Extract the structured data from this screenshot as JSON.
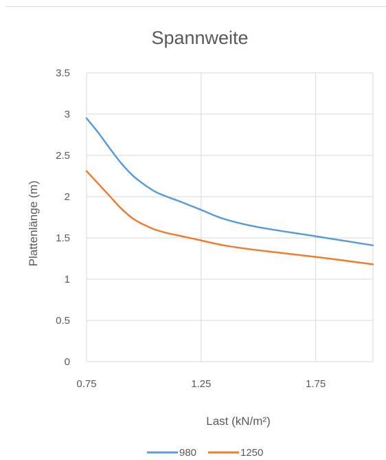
{
  "chart_data": {
    "type": "line",
    "title": "Spannweite",
    "xlabel": "Last (kN/m²)",
    "ylabel": "Plattenlänge (m)",
    "xlim": [
      0.75,
      2.0
    ],
    "ylim": [
      0,
      3.5
    ],
    "x_ticks": [
      "0.75",
      "1.25",
      "1.75"
    ],
    "x_tick_values": [
      0.75,
      1.25,
      1.75
    ],
    "x_gridlines": [
      0.75,
      1.25,
      1.75,
      2.0
    ],
    "y_ticks": [
      "0",
      "0.5",
      "1",
      "1.5",
      "2",
      "2.5",
      "3",
      "3.5"
    ],
    "y_tick_values": [
      0,
      0.5,
      1,
      1.5,
      2,
      2.5,
      3,
      3.5
    ],
    "grid": true,
    "legend_position": "bottom",
    "series": [
      {
        "name": "980",
        "color": "#5b9bd5",
        "x": [
          0.75,
          0.8,
          0.85,
          0.9,
          0.95,
          1.0,
          1.05,
          1.1,
          1.15,
          1.25,
          1.35,
          1.5,
          1.75,
          2.0
        ],
        "y": [
          2.95,
          2.78,
          2.59,
          2.41,
          2.26,
          2.15,
          2.06,
          2.0,
          1.95,
          1.84,
          1.73,
          1.63,
          1.52,
          1.41
        ]
      },
      {
        "name": "1250",
        "color": "#ed7d31",
        "x": [
          0.75,
          0.8,
          0.85,
          0.9,
          0.95,
          1.0,
          1.05,
          1.1,
          1.15,
          1.25,
          1.35,
          1.5,
          1.75,
          2.0
        ],
        "y": [
          2.31,
          2.16,
          2.01,
          1.86,
          1.74,
          1.66,
          1.6,
          1.56,
          1.53,
          1.47,
          1.41,
          1.35,
          1.27,
          1.18
        ]
      }
    ]
  }
}
